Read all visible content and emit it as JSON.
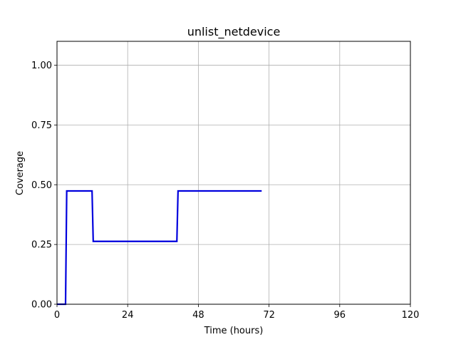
{
  "chart_data": {
    "type": "line",
    "title": "unlist_netdevice",
    "xlabel": "Time (hours)",
    "ylabel": "Coverage",
    "xlim": [
      0,
      120
    ],
    "ylim": [
      0,
      1.1
    ],
    "x_ticks": [
      0,
      24,
      48,
      72,
      96,
      120
    ],
    "x_tick_labels": [
      "0",
      "24",
      "48",
      "72",
      "96",
      "120"
    ],
    "y_ticks": [
      0,
      0.25,
      0.5,
      0.75,
      1.0
    ],
    "y_tick_labels": [
      "0.00",
      "0.25",
      "0.50",
      "0.75",
      "1.00"
    ],
    "grid": true,
    "series": [
      {
        "color": "#0000dd",
        "x": [
          0,
          2.9,
          3.3,
          11.9,
          12.3,
          40.7,
          41.1,
          69.5
        ],
        "y": [
          0,
          0,
          0.474,
          0.474,
          0.263,
          0.263,
          0.474,
          0.474
        ]
      }
    ]
  }
}
